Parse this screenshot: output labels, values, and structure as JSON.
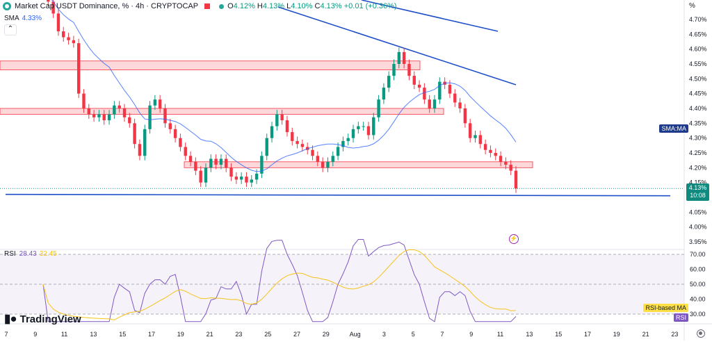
{
  "header": {
    "symbol_title": "Market Cap USDT Dominance, % · 4h · CRYPTOCAP",
    "ohlc": {
      "open_label": "O",
      "open": "4.12%",
      "high_label": "H",
      "high": "4.13%",
      "low_label": "L",
      "low": "4.10%",
      "close_label": "C",
      "close": "4.13%",
      "change": "+0.01 (+0.36%)"
    }
  },
  "sma": {
    "label": "SMA",
    "value": "4.33%",
    "tag": "SMA:MA"
  },
  "rsi": {
    "label": "RSI",
    "value": "28.43",
    "ma_value": "32.45",
    "ma_tag": "RSI-based MA",
    "tag": "RSI"
  },
  "price_axis": {
    "unit": "%",
    "ticks": [
      "4.70%",
      "4.65%",
      "4.60%",
      "4.55%",
      "4.50%",
      "4.45%",
      "4.40%",
      "4.35%",
      "4.30%",
      "4.25%",
      "4.20%",
      "4.15%",
      "4.05%",
      "4.00%",
      "3.95%"
    ],
    "current_price": "4.13%",
    "countdown": "10:08"
  },
  "rsi_axis": {
    "ticks": [
      "70.00",
      "60.00",
      "50.00",
      "40.00",
      "30.00"
    ]
  },
  "time_axis": {
    "ticks": [
      "7",
      "9",
      "11",
      "13",
      "15",
      "17",
      "19",
      "21",
      "23",
      "25",
      "27",
      "29",
      "Aug",
      "3",
      "5",
      "7",
      "9",
      "11",
      "13",
      "15",
      "17",
      "19",
      "21",
      "23"
    ]
  },
  "branding": {
    "logo_text": "TradingView"
  },
  "colors": {
    "up": "#089981",
    "down": "#f23645",
    "sma": "#2962ff",
    "trend": "#1e4fc9",
    "zone": "#f8a9ae",
    "rsi": "#7e57c2",
    "rsi_ma": "#f7c31a"
  },
  "chart_data": {
    "type": "candlestick",
    "title": "Market Cap USDT Dominance, %",
    "timeframe": "4h",
    "price_range": [
      3.93,
      4.74
    ],
    "close_series": [
      4.8,
      4.76,
      4.72,
      4.66,
      4.64,
      4.63,
      4.62,
      4.45,
      4.4,
      4.38,
      4.37,
      4.38,
      4.36,
      4.38,
      4.41,
      4.4,
      4.37,
      4.35,
      4.28,
      4.24,
      4.33,
      4.41,
      4.43,
      4.4,
      4.35,
      4.33,
      4.3,
      4.27,
      4.24,
      4.22,
      4.19,
      4.15,
      4.2,
      4.23,
      4.21,
      4.23,
      4.2,
      4.17,
      4.16,
      4.17,
      4.15,
      4.16,
      4.18,
      4.24,
      4.3,
      4.34,
      4.38,
      4.36,
      4.32,
      4.29,
      4.28,
      4.27,
      4.26,
      4.24,
      4.22,
      4.2,
      4.22,
      4.24,
      4.27,
      4.29,
      4.3,
      4.33,
      4.34,
      4.34,
      4.31,
      4.37,
      4.43,
      4.47,
      4.51,
      4.55,
      4.59,
      4.55,
      4.51,
      4.48,
      4.47,
      4.43,
      4.4,
      4.43,
      4.49,
      4.48,
      4.45,
      4.42,
      4.4,
      4.35,
      4.3,
      4.31,
      4.28,
      4.26,
      4.25,
      4.24,
      4.22,
      4.21,
      4.19,
      4.13
    ],
    "sma": {
      "period_label": "SMA",
      "last": 4.33
    },
    "support_line": 4.11,
    "resistance_zones": [
      [
        4.53,
        4.56
      ],
      [
        4.38,
        4.4
      ],
      [
        4.2,
        4.22
      ]
    ],
    "rsi": {
      "last": 28.43,
      "ma_last": 32.45,
      "levels": [
        70,
        50,
        30
      ]
    }
  }
}
